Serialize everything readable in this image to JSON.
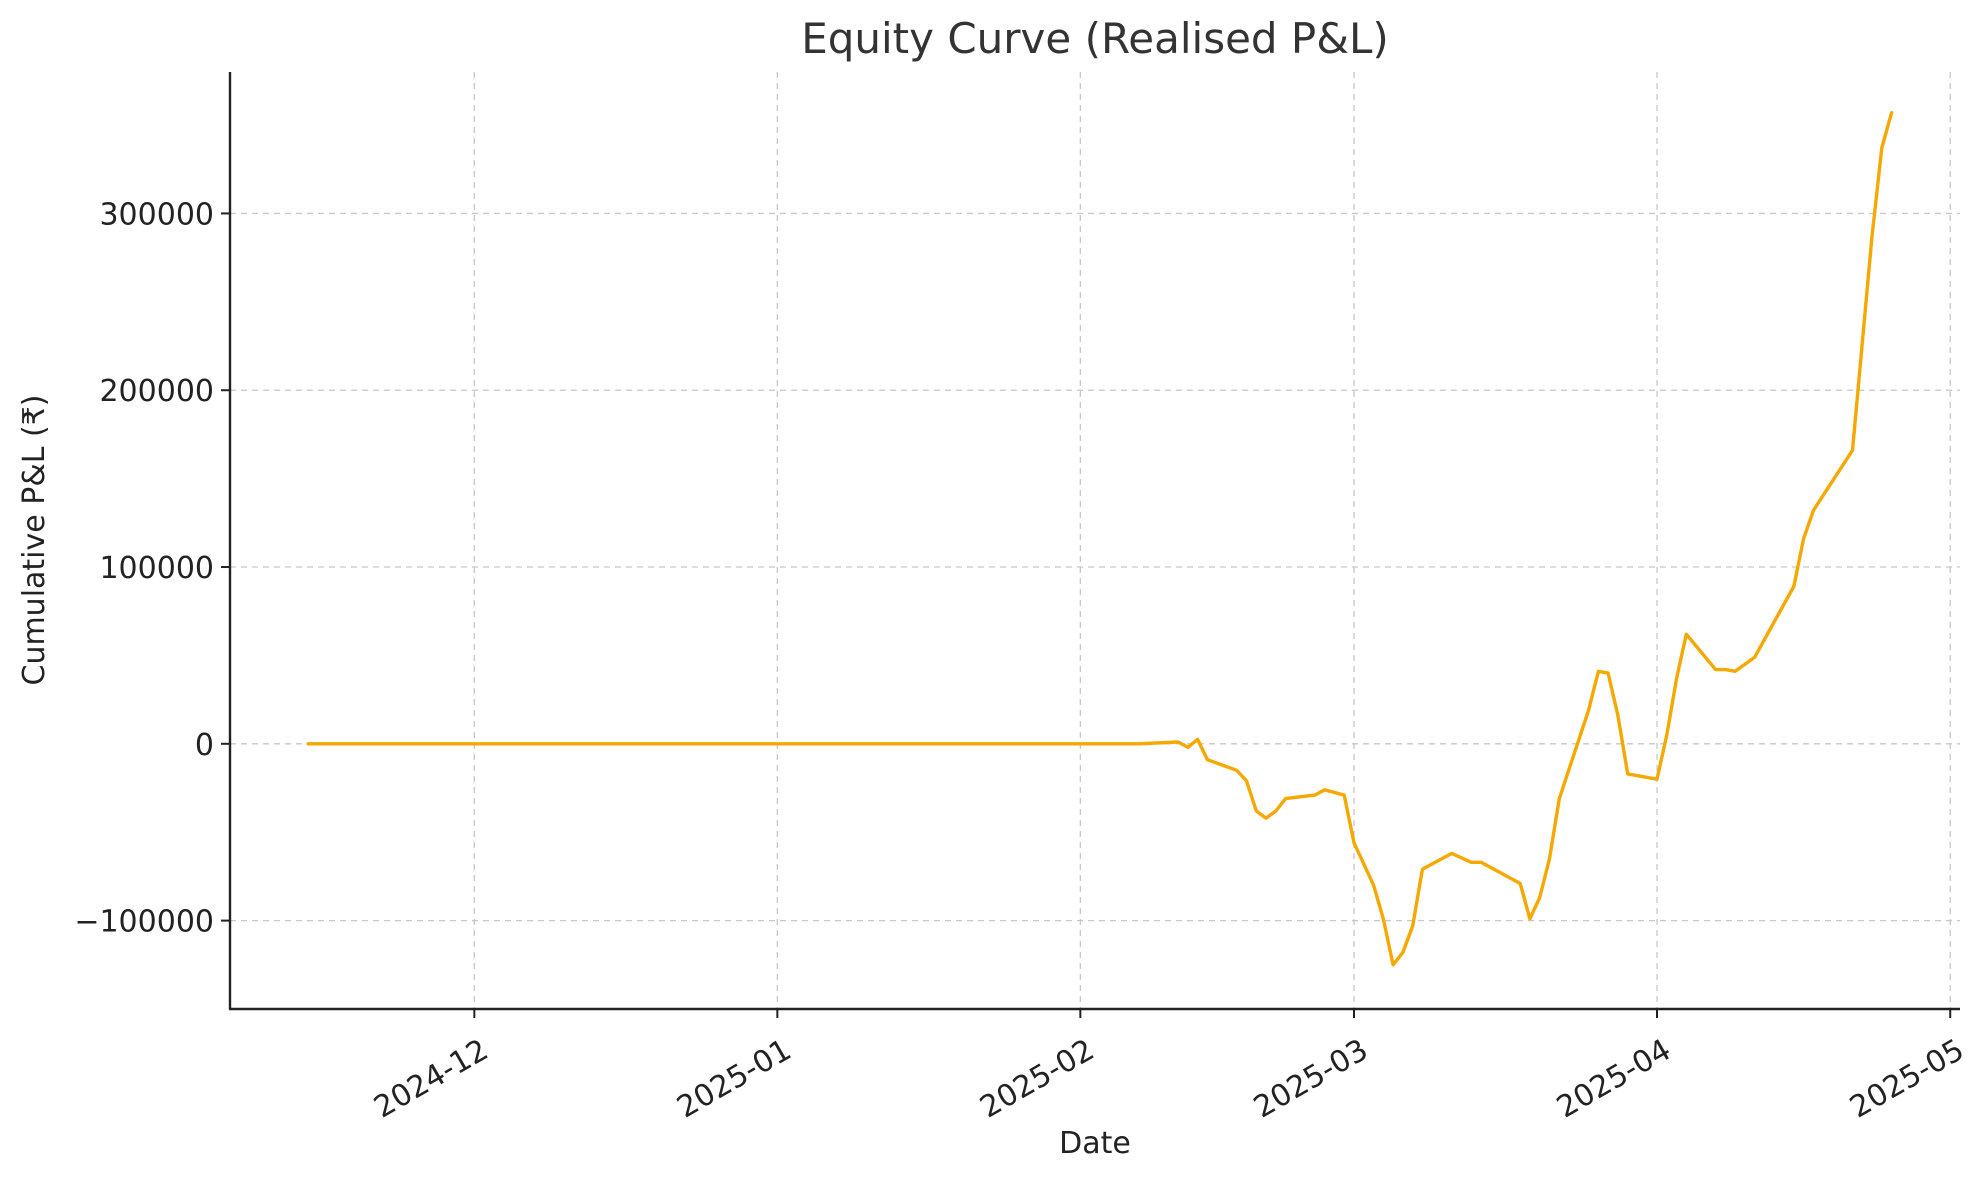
{
  "chart_data": {
    "type": "line",
    "title": "Equity Curve (Realised P&L)",
    "xlabel": "Date",
    "ylabel": "Cumulative P&L (₹)",
    "x_axis_type": "date",
    "xlim": [
      "2024-11-06",
      "2025-05-02"
    ],
    "ylim": [
      -150000,
      380000
    ],
    "x_ticks": [
      {
        "date": "2024-12-01",
        "label": "2024-12"
      },
      {
        "date": "2025-01-01",
        "label": "2025-01"
      },
      {
        "date": "2025-02-01",
        "label": "2025-02"
      },
      {
        "date": "2025-03-01",
        "label": "2025-03"
      },
      {
        "date": "2025-04-01",
        "label": "2025-04"
      },
      {
        "date": "2025-05-01",
        "label": "2025-05"
      }
    ],
    "y_ticks": [
      {
        "value": -100000,
        "label": "−100000"
      },
      {
        "value": 0,
        "label": "0"
      },
      {
        "value": 100000,
        "label": "100000"
      },
      {
        "value": 200000,
        "label": "200000"
      },
      {
        "value": 300000,
        "label": "300000"
      }
    ],
    "grid": true,
    "series": [
      {
        "color": "#f5a800",
        "points": [
          [
            "2024-11-14",
            0
          ],
          [
            "2025-02-07",
            0
          ],
          [
            "2025-02-11",
            1000
          ],
          [
            "2025-02-12",
            -2000
          ],
          [
            "2025-02-13",
            2500
          ],
          [
            "2025-02-14",
            -9000
          ],
          [
            "2025-02-17",
            -15000
          ],
          [
            "2025-02-18",
            -21000
          ],
          [
            "2025-02-19",
            -38000
          ],
          [
            "2025-02-20",
            -42000
          ],
          [
            "2025-02-21",
            -38000
          ],
          [
            "2025-02-22",
            -31000
          ],
          [
            "2025-02-25",
            -29000
          ],
          [
            "2025-02-26",
            -26000
          ],
          [
            "2025-02-28",
            -29000
          ],
          [
            "2025-03-01",
            -56000
          ],
          [
            "2025-03-03",
            -80000
          ],
          [
            "2025-03-04",
            -99000
          ],
          [
            "2025-03-05",
            -125000
          ],
          [
            "2025-03-06",
            -118000
          ],
          [
            "2025-03-07",
            -103000
          ],
          [
            "2025-03-08",
            -71000
          ],
          [
            "2025-03-11",
            -62000
          ],
          [
            "2025-03-13",
            -67000
          ],
          [
            "2025-03-14",
            -67000
          ],
          [
            "2025-03-18",
            -79000
          ],
          [
            "2025-03-19",
            -99000
          ],
          [
            "2025-03-20",
            -87000
          ],
          [
            "2025-03-21",
            -65000
          ],
          [
            "2025-03-22",
            -31000
          ],
          [
            "2025-03-25",
            19000
          ],
          [
            "2025-03-26",
            41000
          ],
          [
            "2025-03-27",
            40000
          ],
          [
            "2025-03-28",
            16000
          ],
          [
            "2025-03-29",
            -17000
          ],
          [
            "2025-04-01",
            -20000
          ],
          [
            "2025-04-02",
            5000
          ],
          [
            "2025-04-03",
            37000
          ],
          [
            "2025-04-04",
            62000
          ],
          [
            "2025-04-07",
            42000
          ],
          [
            "2025-04-08",
            42000
          ],
          [
            "2025-04-09",
            41000
          ],
          [
            "2025-04-11",
            49000
          ],
          [
            "2025-04-15",
            89000
          ],
          [
            "2025-04-16",
            116000
          ],
          [
            "2025-04-17",
            132000
          ],
          [
            "2025-04-21",
            166000
          ],
          [
            "2025-04-23",
            287000
          ],
          [
            "2025-04-24",
            337000
          ],
          [
            "2025-04-25",
            357000
          ]
        ]
      }
    ]
  }
}
